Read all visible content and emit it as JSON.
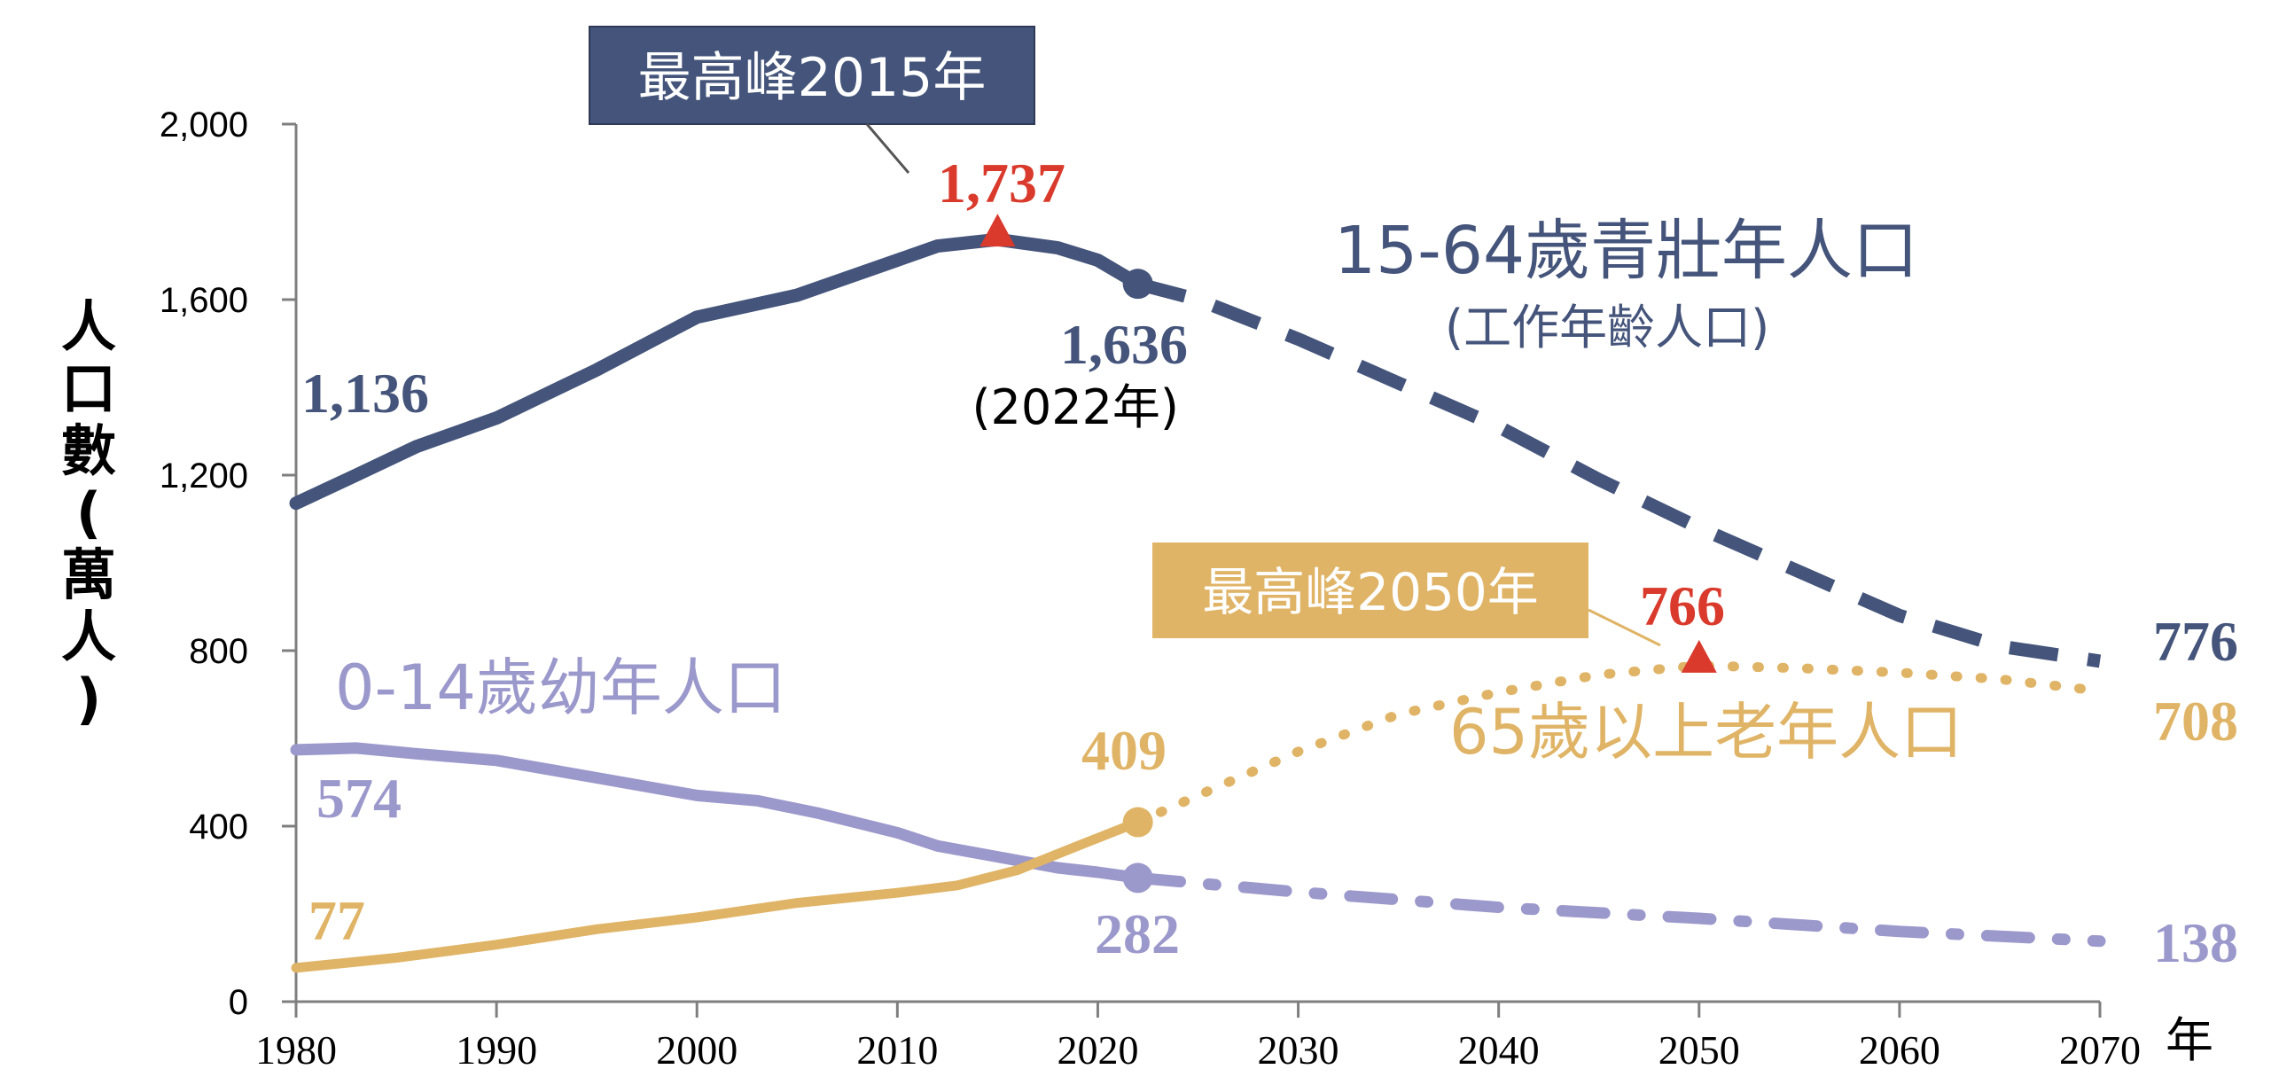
{
  "chart_data": {
    "type": "line",
    "ylabel": "人口數(萬人)",
    "xlabel": "年",
    "xlim": [
      1980,
      2070
    ],
    "ylim": [
      0,
      2000
    ],
    "x_ticks": [
      "1980",
      "1990",
      "2000",
      "2010",
      "2020",
      "2030",
      "2040",
      "2050",
      "2060",
      "2070"
    ],
    "y_ticks": [
      "0",
      "400",
      "800",
      "1,200",
      "1,600",
      "2,000"
    ],
    "grid": false,
    "series": [
      {
        "name": "15-64歲青壯年人口",
        "subname": "(工作年齡人口)",
        "color": "#44547a",
        "actual": [
          [
            1980,
            1136
          ],
          [
            1983,
            1200
          ],
          [
            1986,
            1265
          ],
          [
            1990,
            1330
          ],
          [
            1995,
            1440
          ],
          [
            2000,
            1560
          ],
          [
            2005,
            1610
          ],
          [
            2010,
            1690
          ],
          [
            2012,
            1722
          ],
          [
            2015,
            1737
          ],
          [
            2018,
            1718
          ],
          [
            2020,
            1690
          ],
          [
            2022,
            1636
          ]
        ],
        "projected": [
          [
            2022,
            1636
          ],
          [
            2025,
            1600
          ],
          [
            2030,
            1510
          ],
          [
            2035,
            1410
          ],
          [
            2040,
            1310
          ],
          [
            2045,
            1190
          ],
          [
            2050,
            1080
          ],
          [
            2055,
            980
          ],
          [
            2060,
            880
          ],
          [
            2065,
            810
          ],
          [
            2070,
            776
          ]
        ],
        "start_label": "1,136",
        "current_label": "1,636",
        "current_year_label": "(2022年)",
        "end_label": "776",
        "peak": {
          "year": 2015,
          "value": 1737,
          "value_label": "1,737",
          "callout": "最高峰2015年"
        }
      },
      {
        "name": "0-14歲幼年人口",
        "color": "#9b98cb",
        "actual": [
          [
            1980,
            574
          ],
          [
            1983,
            578
          ],
          [
            1986,
            565
          ],
          [
            1990,
            550
          ],
          [
            1995,
            510
          ],
          [
            2000,
            470
          ],
          [
            2003,
            458
          ],
          [
            2006,
            430
          ],
          [
            2010,
            385
          ],
          [
            2012,
            355
          ],
          [
            2015,
            330
          ],
          [
            2018,
            305
          ],
          [
            2020,
            295
          ],
          [
            2022,
            282
          ]
        ],
        "projected": [
          [
            2022,
            282
          ],
          [
            2030,
            250
          ],
          [
            2040,
            215
          ],
          [
            2050,
            190
          ],
          [
            2060,
            160
          ],
          [
            2070,
            138
          ]
        ],
        "start_label": "574",
        "current_label": "282",
        "end_label": "138"
      },
      {
        "name": "65歲以上老年人口",
        "color": "#e0b466",
        "actual": [
          [
            1980,
            77
          ],
          [
            1985,
            100
          ],
          [
            1990,
            130
          ],
          [
            1995,
            165
          ],
          [
            2000,
            192
          ],
          [
            2005,
            225
          ],
          [
            2010,
            248
          ],
          [
            2013,
            265
          ],
          [
            2016,
            300
          ],
          [
            2019,
            355
          ],
          [
            2022,
            409
          ]
        ],
        "projected": [
          [
            2022,
            409
          ],
          [
            2026,
            490
          ],
          [
            2030,
            570
          ],
          [
            2035,
            655
          ],
          [
            2040,
            705
          ],
          [
            2045,
            745
          ],
          [
            2050,
            766
          ],
          [
            2055,
            760
          ],
          [
            2060,
            750
          ],
          [
            2065,
            735
          ],
          [
            2070,
            708
          ]
        ],
        "start_label": "77",
        "current_label": "409",
        "end_label": "708",
        "peak": {
          "year": 2050,
          "value": 766,
          "value_label": "766",
          "callout": "最高峰2050年"
        }
      }
    ]
  },
  "colors": {
    "peak_marker": "#d93a2b",
    "axis": "#7f7f7f"
  }
}
